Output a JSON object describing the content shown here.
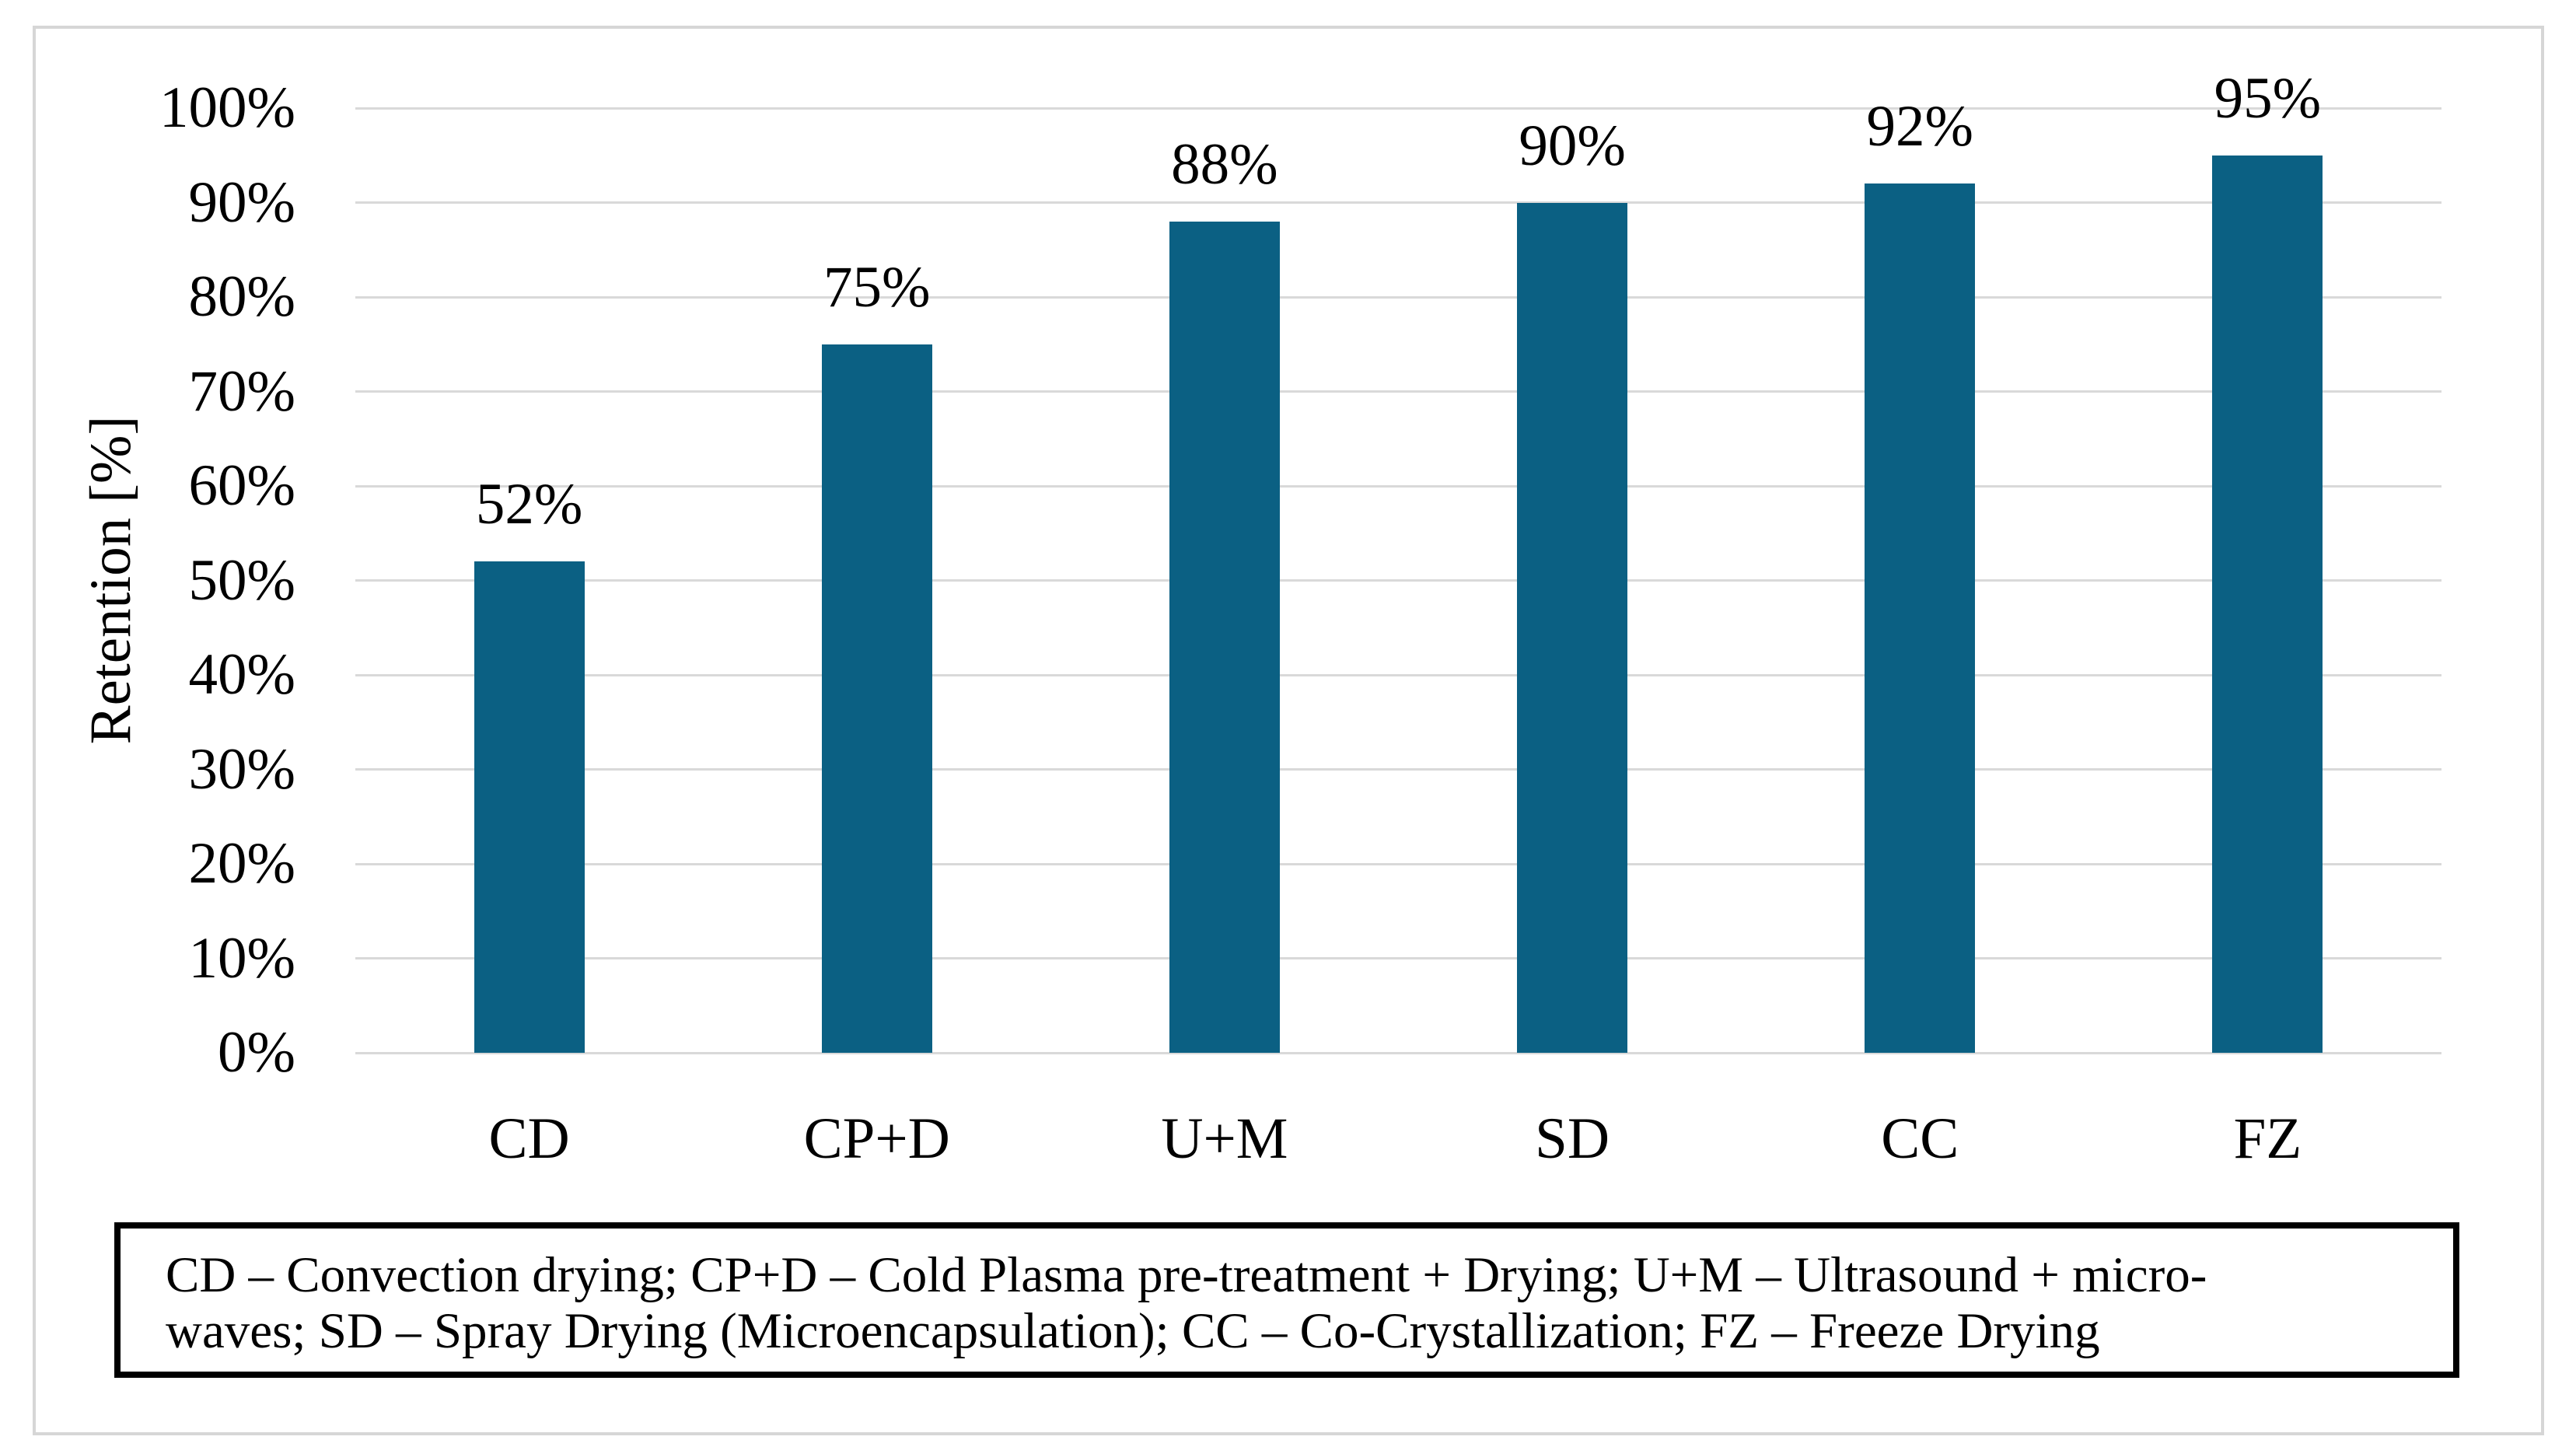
{
  "figure": {
    "caption": {
      "line1": "CD – Convection drying; CP+D – Cold Plasma pre-treatment + Drying; U+M – Ultrasound + micro-",
      "line2": "waves; SD – Spray Drying (Microencapsulation); CC – Co-Crystallization; FZ – Freeze Drying"
    }
  },
  "chart_data": {
    "type": "bar",
    "title": "",
    "categories": [
      "CD",
      "CP+D",
      "U+M",
      "SD",
      "CC",
      "FZ"
    ],
    "values": [
      52,
      75,
      88,
      90,
      92,
      95
    ],
    "data_labels": [
      "52%",
      "75%",
      "88%",
      "90%",
      "92%",
      "95%"
    ],
    "xlabel": "",
    "ylabel": "Retention [%]",
    "ylim": [
      0,
      100
    ],
    "ytick_step": 10,
    "yticks_top_to_bottom": [
      "100%",
      "90%",
      "80%",
      "70%",
      "60%",
      "50%",
      "40%",
      "30%",
      "20%",
      "10%",
      "0%"
    ],
    "grid": true,
    "legend_position": "none",
    "bar_color": "#0b6083",
    "gridline_color": "#d9d9d9",
    "frame_color": "#d6d6d6",
    "caption_border_color": "#000000"
  }
}
